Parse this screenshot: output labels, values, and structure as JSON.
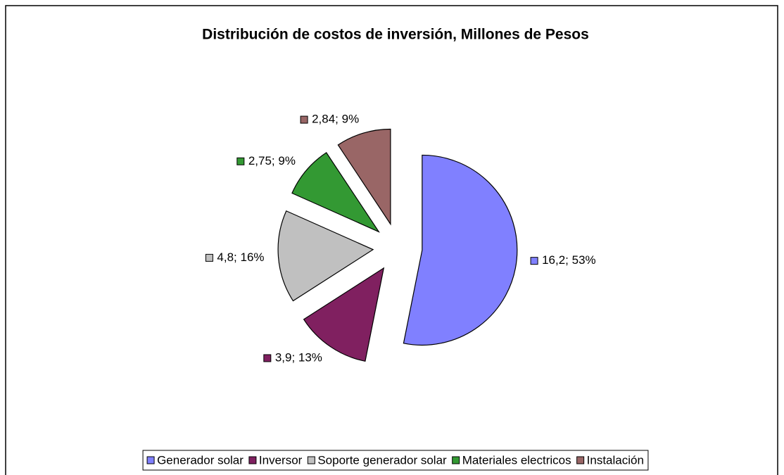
{
  "chart_data": {
    "type": "pie",
    "title": "Distribución de costos de inversión, Millones de Pesos",
    "categories": [
      "Generador solar",
      "Inversor",
      "Soporte generador solar",
      "Materiales electricos",
      "Instalación"
    ],
    "values": [
      16.2,
      3.9,
      4.8,
      2.75,
      2.84
    ],
    "value_labels": [
      "16,2; 53%",
      "3,9; 13%",
      "4,8; 16%",
      "2,75; 9%",
      "2,84; 9%"
    ],
    "colors": [
      "#8080ff",
      "#802060",
      "#c0c0c0",
      "#339933",
      "#996666"
    ],
    "legend": "bottom"
  }
}
